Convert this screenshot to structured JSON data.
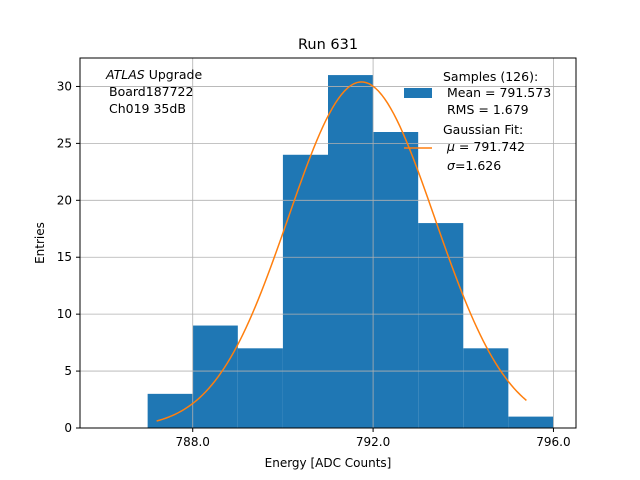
{
  "chart_data": {
    "type": "bar",
    "title": "Run 631",
    "xlabel": "Energy [ADC Counts]",
    "ylabel": "Entries",
    "xlim": [
      785.5,
      796.5
    ],
    "ylim": [
      0,
      32.5
    ],
    "grid": true,
    "x_ticks": [
      788.0,
      792.0,
      796.0
    ],
    "x_tick_labels": [
      "788.0",
      "792.0",
      "796.0"
    ],
    "y_ticks": [
      0,
      5,
      10,
      15,
      20,
      25,
      30
    ],
    "y_tick_labels": [
      "0",
      "5",
      "10",
      "15",
      "20",
      "25",
      "30"
    ],
    "bins": [
      {
        "x0": 787.0,
        "x1": 788.0,
        "count": 3
      },
      {
        "x0": 788.0,
        "x1": 789.0,
        "count": 9
      },
      {
        "x0": 789.0,
        "x1": 790.0,
        "count": 7
      },
      {
        "x0": 790.0,
        "x1": 791.0,
        "count": 24
      },
      {
        "x0": 791.0,
        "x1": 792.0,
        "count": 31
      },
      {
        "x0": 792.0,
        "x1": 793.0,
        "count": 26
      },
      {
        "x0": 793.0,
        "x1": 794.0,
        "count": 18
      },
      {
        "x0": 794.0,
        "x1": 795.0,
        "count": 7
      },
      {
        "x0": 795.0,
        "x1": 796.0,
        "count": 1
      }
    ],
    "fit": {
      "type": "gaussian",
      "mu": 791.742,
      "sigma": 1.626,
      "amplitude": 30.4,
      "x_range": [
        787.2,
        795.4
      ]
    },
    "colors": {
      "bars": "#1f77b4",
      "fit": "#ff7f0e",
      "grid": "#b0b0b0"
    },
    "annotation": {
      "line1_italic": "ATLAS",
      "line1_rest": " Upgrade",
      "line2": "Board187722",
      "line3": "Ch019 35dB"
    },
    "legend": {
      "position": "top-right",
      "samples_title": "Samples (126):",
      "samples_mean": "Mean = 791.573",
      "samples_rms": "RMS = 1.679",
      "fit_title": "Gaussian Fit:",
      "fit_mu_symbol": "μ",
      "fit_mu_value": " = 791.742",
      "fit_sigma_symbol": "σ",
      "fit_sigma_value": "=1.626"
    }
  }
}
